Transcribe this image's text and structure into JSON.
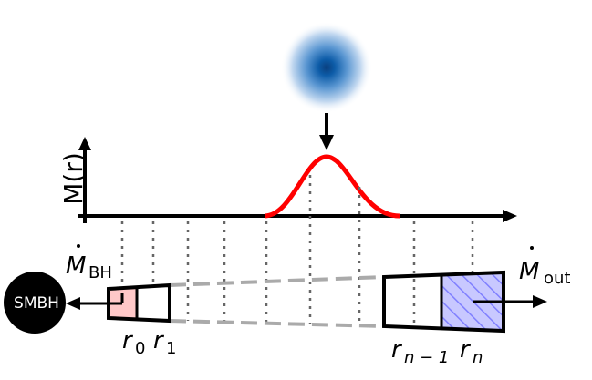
{
  "diagram": {
    "axis_label": "M(r)",
    "smbh_label": "SMBH",
    "mdot_bh_sub": "BH",
    "mdot_out_sub": "out",
    "radius_labels": {
      "r0": "0",
      "r1": "1",
      "rn_minus_1": "n − 1",
      "rn": "n"
    },
    "colors": {
      "curve": "#ff0000",
      "inner_fill": "#ffc8c8",
      "outer_fill": "#c8c8ff",
      "hatch": "#8080ff",
      "smbh": "#000000",
      "cloud_core": "#0a3f7e",
      "dotted_lines": "#666666",
      "dashed_lines": "#aaaaaa"
    }
  }
}
